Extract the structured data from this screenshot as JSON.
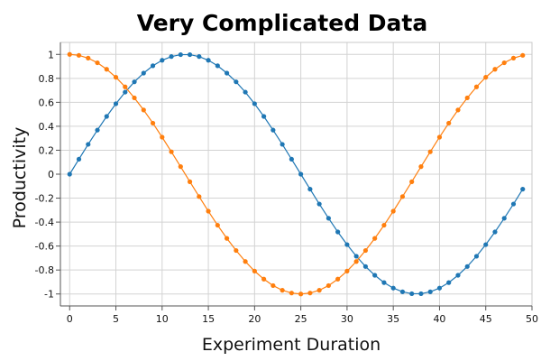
{
  "chart_data": {
    "type": "line",
    "title": "Very Complicated Data",
    "xlabel": "Experiment Duration",
    "ylabel": "Productivity",
    "xlim": [
      -1,
      50
    ],
    "ylim": [
      -1.1,
      1.1
    ],
    "x_ticks": [
      0,
      5,
      10,
      15,
      20,
      25,
      30,
      35,
      40,
      45,
      50
    ],
    "y_ticks": [
      1,
      0.8,
      0.6,
      0.4,
      0.2,
      0,
      -0.2,
      -0.4,
      -0.6,
      -0.8,
      -1
    ],
    "grid": true,
    "x": [
      0,
      1,
      2,
      3,
      4,
      5,
      6,
      7,
      8,
      9,
      10,
      11,
      12,
      13,
      14,
      15,
      16,
      17,
      18,
      19,
      20,
      21,
      22,
      23,
      24,
      25,
      26,
      27,
      28,
      29,
      30,
      31,
      32,
      33,
      34,
      35,
      36,
      37,
      38,
      39,
      40,
      41,
      42,
      43,
      44,
      45,
      46,
      47,
      48,
      49
    ],
    "series": [
      {
        "color": "#1f77b4",
        "values": [
          0.0,
          0.125,
          0.249,
          0.368,
          0.482,
          0.588,
          0.685,
          0.771,
          0.844,
          0.905,
          0.951,
          0.982,
          0.998,
          0.998,
          0.982,
          0.951,
          0.905,
          0.844,
          0.771,
          0.685,
          0.588,
          0.482,
          0.368,
          0.249,
          0.125,
          0.0,
          -0.125,
          -0.249,
          -0.368,
          -0.482,
          -0.588,
          -0.685,
          -0.771,
          -0.844,
          -0.905,
          -0.951,
          -0.982,
          -0.998,
          -0.998,
          -0.982,
          -0.951,
          -0.905,
          -0.844,
          -0.771,
          -0.685,
          -0.588,
          -0.482,
          -0.368,
          -0.249,
          -0.125
        ]
      },
      {
        "color": "#ff7f0e",
        "values": [
          1.0,
          0.992,
          0.969,
          0.93,
          0.876,
          0.809,
          0.729,
          0.637,
          0.536,
          0.426,
          0.309,
          0.187,
          0.063,
          -0.063,
          -0.187,
          -0.309,
          -0.426,
          -0.536,
          -0.637,
          -0.729,
          -0.809,
          -0.876,
          -0.93,
          -0.969,
          -0.992,
          -1.0,
          -0.992,
          -0.969,
          -0.93,
          -0.876,
          -0.809,
          -0.729,
          -0.637,
          -0.536,
          -0.426,
          -0.309,
          -0.187,
          -0.063,
          0.063,
          0.187,
          0.309,
          0.426,
          0.536,
          0.637,
          0.729,
          0.809,
          0.876,
          0.93,
          0.969,
          0.992
        ]
      }
    ]
  }
}
